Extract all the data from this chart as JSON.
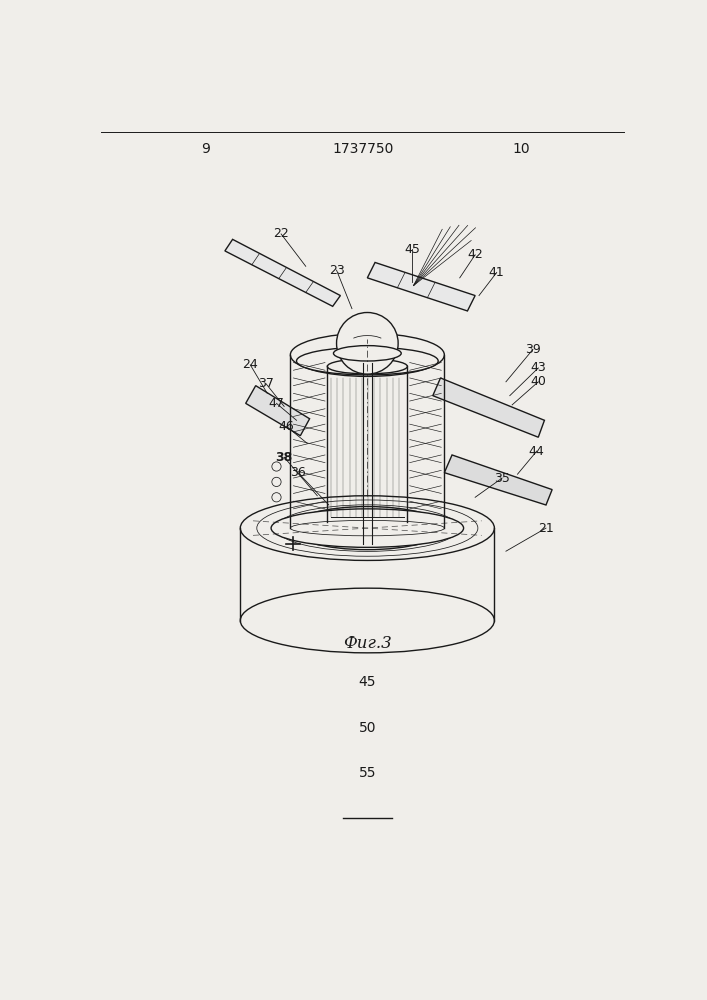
{
  "page_number_left": "9",
  "page_number_right": "10",
  "patent_number": "1737750",
  "figure_label": "Фиг.3",
  "bottom_numbers": [
    "45",
    "50",
    "55"
  ],
  "background_color": "#f0eeea",
  "line_color": "#1a1a1a"
}
